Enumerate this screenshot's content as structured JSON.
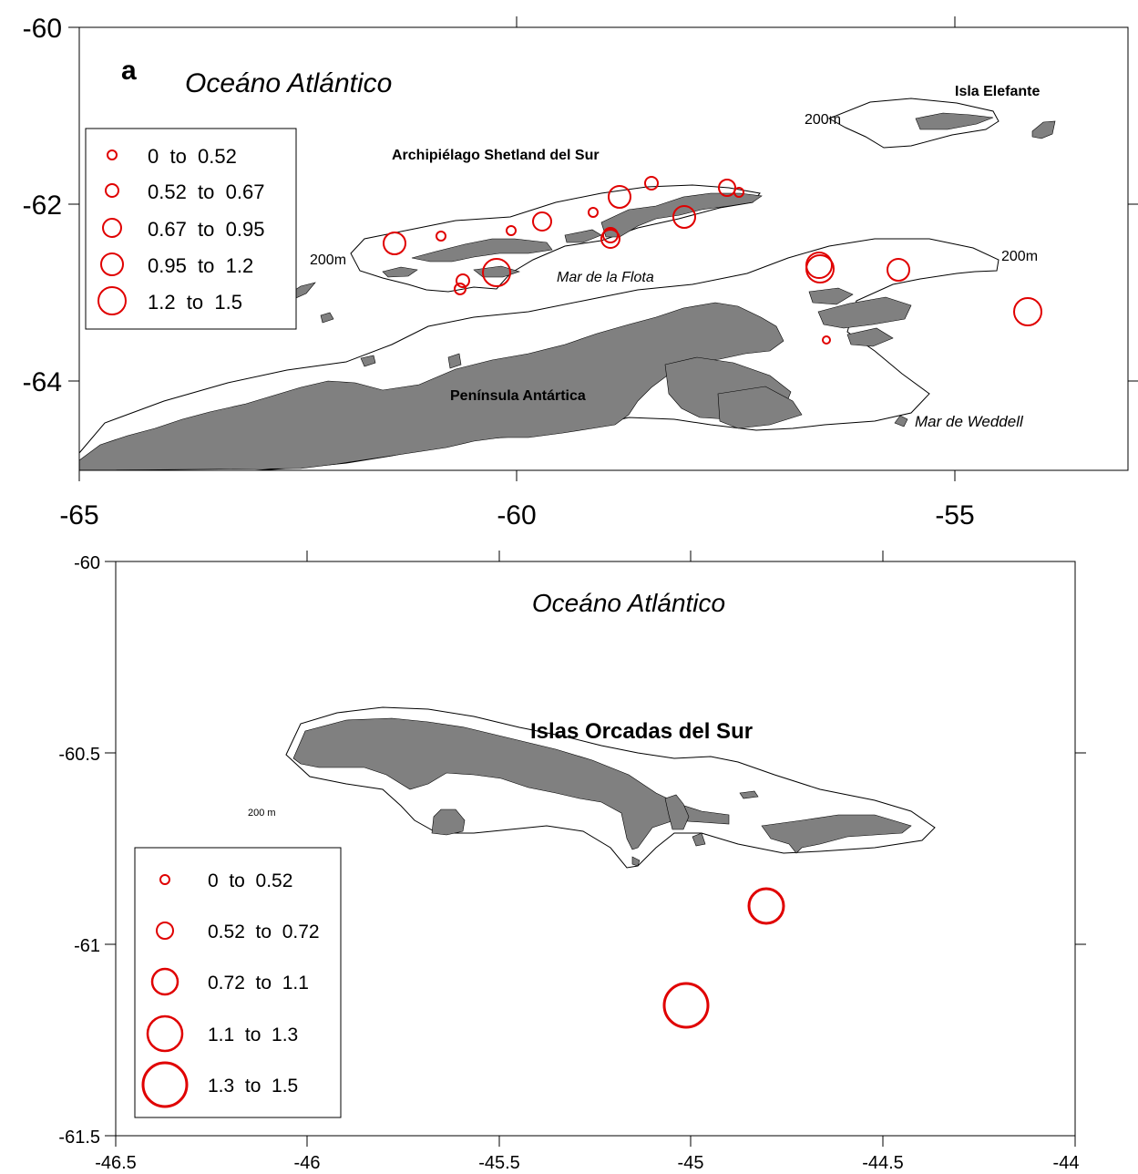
{
  "colors": {
    "land": "#808080",
    "symbol": "#e00000",
    "frame": "#000000",
    "contour": "#000000"
  },
  "panel_a": {
    "panel_letter": "a",
    "x_ticks": [
      "-65",
      "-60",
      "-55"
    ],
    "y_ticks": [
      "-60",
      "-62",
      "-64"
    ],
    "labels": {
      "ocean": "Oceáno Atlántico",
      "archipelago": "Archipiélago Shetland del Sur",
      "elephant": "Isla Elefante",
      "fleet_sea": "Mar de la Flota",
      "peninsula": "Península Antártica",
      "weddell": "Mar de Weddell",
      "isobath_left": "200m",
      "isobath_right": "200m",
      "isobath_top": "200m"
    },
    "legend": [
      {
        "label": "0  to  0.52"
      },
      {
        "label": "0.52  to  0.67"
      },
      {
        "label": "0.67  to  0.95"
      },
      {
        "label": "0.95  to  1.2"
      },
      {
        "label": "1.2  to  1.5"
      }
    ]
  },
  "panel_b": {
    "x_ticks": [
      "-46.5",
      "-46",
      "-45.5",
      "-45",
      "-44.5",
      "-44"
    ],
    "y_ticks": [
      "-60",
      "-60.5",
      "-61",
      "-61.5"
    ],
    "labels": {
      "ocean": "Oceáno Atlántico",
      "islands": "Islas Orcadas del Sur",
      "isobath": "200 m"
    },
    "legend": [
      {
        "label": "0  to  0.52"
      },
      {
        "label": "0.52  to  0.72"
      },
      {
        "label": "0.72  to  1.1"
      },
      {
        "label": "1.1  to  1.3"
      },
      {
        "label": "1.3  to  1.5"
      }
    ]
  }
}
